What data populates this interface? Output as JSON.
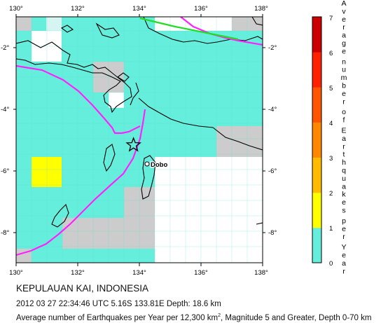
{
  "map": {
    "lon_ticks": [
      "130°",
      "132°",
      "134°",
      "136°",
      "138°"
    ],
    "lat_ticks": [
      "-2°",
      "-4°",
      "-6°",
      "-8°"
    ],
    "place_label": "Dobo",
    "epicenter": {
      "lon": 133.81,
      "lat": -5.16
    },
    "colors": {
      "ocean_cell": "#66eedd",
      "high_cell": "#ffff00",
      "land_missing": "#cccccc",
      "plate_boundary": "#ff22ff",
      "fault_green": "#22dd22"
    }
  },
  "colorbar": {
    "ticks": [
      "0",
      "1",
      "2",
      "3",
      "4",
      "5",
      "6",
      "7"
    ],
    "title_letters": [
      "A",
      "v",
      "e",
      "r",
      "a",
      "g",
      "e",
      "n",
      "u",
      "m",
      "b",
      "e",
      "r",
      "o",
      "f",
      "E",
      "a",
      "r",
      "t",
      "h",
      "q",
      "u",
      "a",
      "k",
      "e",
      "s",
      "p",
      "e",
      "r",
      "Y",
      "e",
      "a",
      "r"
    ],
    "colors": [
      "#66eedd",
      "#ffff00",
      "#ffbb00",
      "#ff8800",
      "#ff5500",
      "#ff2200",
      "#cc0000"
    ]
  },
  "caption": {
    "title": "KEPULAUAN KAI, INDONESIA",
    "event": "2012 03 27 22:34:46 UTC 5.16S 133.81E Depth: 18.6 km",
    "legend_pre": "Average number of Earthquakes per Year per 12,300 km",
    "legend_sup": "2",
    "legend_post": ", Magnitude 5 and Greater, Depth 0-70 km"
  }
}
